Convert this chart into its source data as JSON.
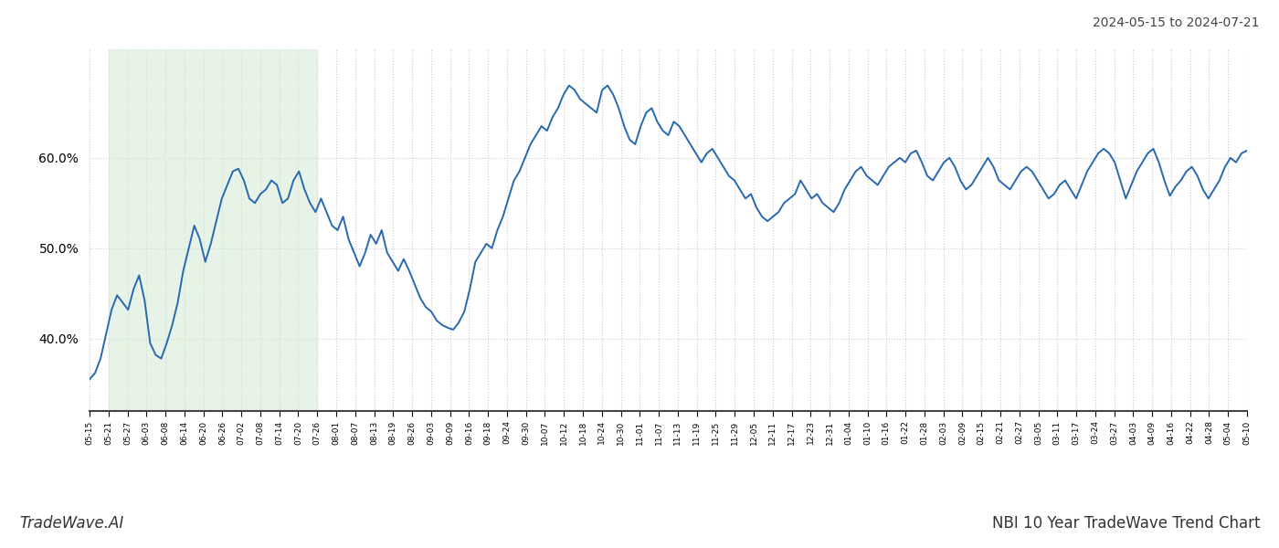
{
  "title_top_right": "2024-05-15 to 2024-07-21",
  "title_bottom_right": "NBI 10 Year TradeWave Trend Chart",
  "title_bottom_left": "TradeWave.AI",
  "line_color": "#2868b0",
  "line_width": 1.4,
  "shade_color": "#d6ead6",
  "shade_alpha": 0.55,
  "background_color": "#ffffff",
  "grid_color": "#cccccc",
  "ylim": [
    32,
    72
  ],
  "yticks": [
    40,
    50,
    60
  ],
  "x_labels": [
    "05-15",
    "05-21",
    "05-27",
    "06-03",
    "06-08",
    "06-14",
    "06-20",
    "06-26",
    "07-02",
    "07-08",
    "07-14",
    "07-20",
    "07-26",
    "08-01",
    "08-07",
    "08-13",
    "08-19",
    "08-26",
    "09-03",
    "09-09",
    "09-16",
    "09-18",
    "09-24",
    "09-30",
    "10-07",
    "10-12",
    "10-18",
    "10-24",
    "10-30",
    "11-01",
    "11-07",
    "11-13",
    "11-19",
    "11-25",
    "11-29",
    "12-05",
    "12-11",
    "12-17",
    "12-23",
    "12-31",
    "01-04",
    "01-10",
    "01-16",
    "01-22",
    "01-28",
    "02-03",
    "02-09",
    "02-15",
    "02-21",
    "02-27",
    "03-05",
    "03-11",
    "03-17",
    "03-24",
    "03-27",
    "04-03",
    "04-09",
    "04-16",
    "04-22",
    "04-28",
    "05-04",
    "05-10"
  ],
  "shade_x_start_label": "05-21",
  "shade_x_end_label": "07-26",
  "y_values": [
    35.5,
    36.2,
    37.8,
    40.5,
    43.2,
    44.8,
    44.0,
    43.2,
    45.5,
    47.0,
    44.2,
    39.5,
    38.2,
    37.8,
    39.5,
    41.5,
    44.0,
    47.5,
    50.0,
    52.5,
    51.0,
    48.5,
    50.5,
    53.0,
    55.5,
    57.0,
    58.5,
    58.8,
    57.5,
    55.5,
    55.0,
    56.0,
    56.5,
    57.5,
    57.0,
    55.0,
    55.5,
    57.5,
    58.5,
    56.5,
    55.0,
    54.0,
    55.5,
    54.0,
    52.5,
    52.0,
    53.5,
    51.0,
    49.5,
    48.0,
    49.5,
    51.5,
    50.5,
    52.0,
    49.5,
    48.5,
    47.5,
    48.8,
    47.5,
    46.0,
    44.5,
    43.5,
    43.0,
    42.0,
    41.5,
    41.2,
    41.0,
    41.8,
    43.0,
    45.5,
    48.5,
    49.5,
    50.5,
    50.0,
    52.0,
    53.5,
    55.5,
    57.5,
    58.5,
    60.0,
    61.5,
    62.5,
    63.5,
    63.0,
    64.5,
    65.5,
    67.0,
    68.0,
    67.5,
    66.5,
    66.0,
    65.5,
    65.0,
    67.5,
    68.0,
    67.0,
    65.5,
    63.5,
    62.0,
    61.5,
    63.5,
    65.0,
    65.5,
    64.0,
    63.0,
    62.5,
    64.0,
    63.5,
    62.5,
    61.5,
    60.5,
    59.5,
    60.5,
    61.0,
    60.0,
    59.0,
    58.0,
    57.5,
    56.5,
    55.5,
    56.0,
    54.5,
    53.5,
    53.0,
    53.5,
    54.0,
    55.0,
    55.5,
    56.0,
    57.5,
    56.5,
    55.5,
    56.0,
    55.0,
    54.5,
    54.0,
    55.0,
    56.5,
    57.5,
    58.5,
    59.0,
    58.0,
    57.5,
    57.0,
    58.0,
    59.0,
    59.5,
    60.0,
    59.5,
    60.5,
    60.8,
    59.5,
    58.0,
    57.5,
    58.5,
    59.5,
    60.0,
    59.0,
    57.5,
    56.5,
    57.0,
    58.0,
    59.0,
    60.0,
    59.0,
    57.5,
    57.0,
    56.5,
    57.5,
    58.5,
    59.0,
    58.5,
    57.5,
    56.5,
    55.5,
    56.0,
    57.0,
    57.5,
    56.5,
    55.5,
    57.0,
    58.5,
    59.5,
    60.5,
    61.0,
    60.5,
    59.5,
    57.5,
    55.5,
    57.0,
    58.5,
    59.5,
    60.5,
    61.0,
    59.5,
    57.5,
    55.8,
    56.8,
    57.5,
    58.5,
    59.0,
    58.0,
    56.5,
    55.5,
    56.5,
    57.5,
    59.0,
    60.0,
    59.5,
    60.5,
    60.8
  ]
}
